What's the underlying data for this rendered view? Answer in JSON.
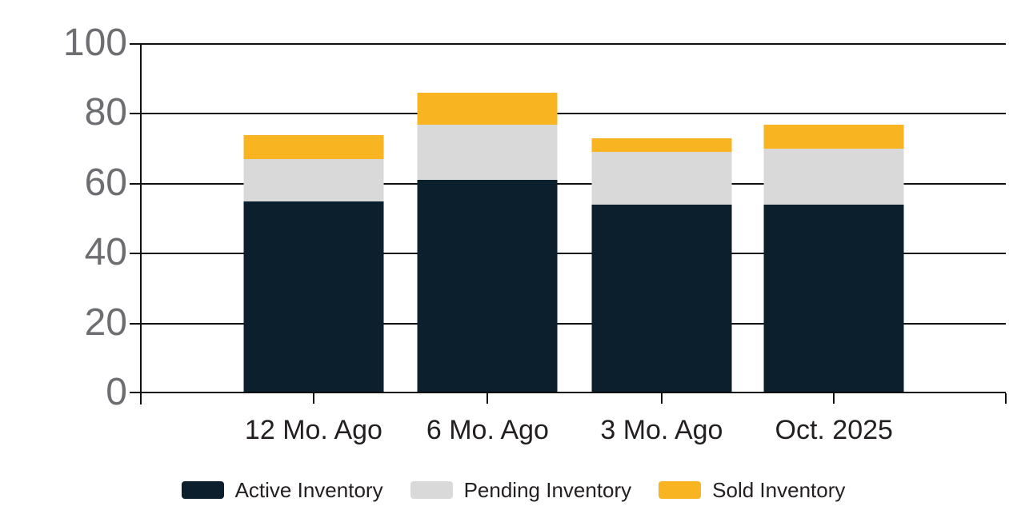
{
  "chart_data": {
    "type": "bar",
    "stacked": true,
    "title": "",
    "xlabel": "",
    "ylabel": "",
    "categories": [
      "12 Mo. Ago",
      "6 Mo. Ago",
      "3 Mo. Ago",
      "Oct. 2025"
    ],
    "series": [
      {
        "name": "Active Inventory",
        "color": "#0c1f2c",
        "values": [
          55,
          61,
          54,
          54
        ]
      },
      {
        "name": "Pending Inventory",
        "color": "#d9d9d9",
        "values": [
          12,
          16,
          15,
          16
        ]
      },
      {
        "name": "Sold Inventory",
        "color": "#f9b521",
        "values": [
          7,
          9,
          4,
          7
        ]
      }
    ],
    "totals": [
      74,
      86,
      73,
      77
    ],
    "ylim": [
      0,
      100
    ],
    "yticks": [
      0,
      20,
      40,
      60,
      80,
      100
    ],
    "grid": true,
    "legend_position": "bottom"
  },
  "colors": {
    "background": "#ffffff",
    "gridline": "#101010",
    "y_tick_label": "#6d6e71",
    "x_tick_label": "#231f20",
    "legend_label": "#231f20"
  }
}
